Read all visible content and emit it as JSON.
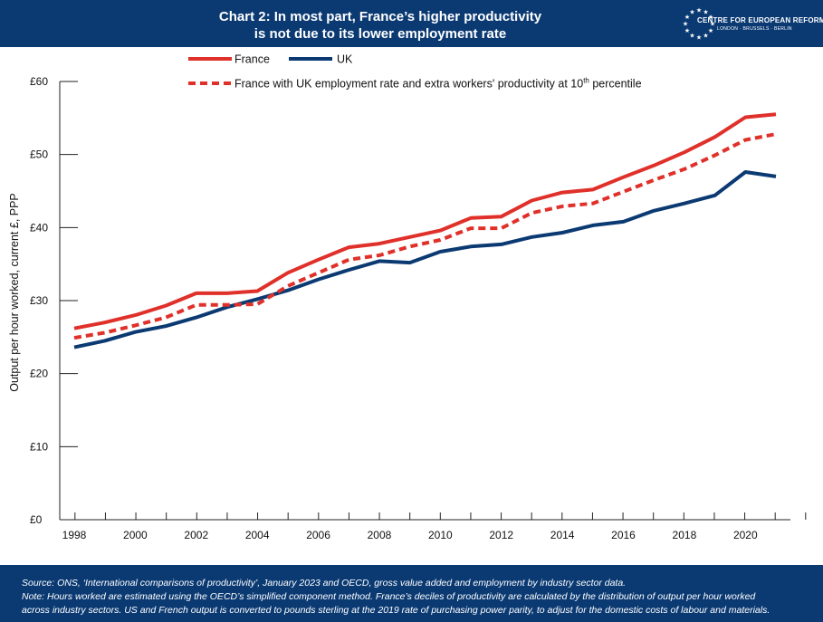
{
  "header": {
    "title_line1": "Chart 2: In most part, France’s higher productivity",
    "title_line2": "is not due to its lower employment rate",
    "logo_name": "CENTRE FOR EUROPEAN REFORM",
    "logo_sub": "LONDON · BRUSSELS · BERLIN"
  },
  "footer": {
    "source": "Source: ONS, ‘International comparisons of productivity’, January 2023 and OECD, gross value added and employment by industry sector data.",
    "note1": "Note: Hours worked are estimated using the OECD’s simplified component method. France’s deciles of productivity are calculated by the distribution of output per hour worked",
    "note2": "across industry sectors. US and French output is converted to pounds sterling at the 2019 rate of purchasing power parity, to adjust for the domestic costs of labour and materials."
  },
  "colors": {
    "header_bg": "#0b3a73",
    "france": "#e0302a",
    "uk": "#0b3a73",
    "axis": "#222222"
  },
  "chart_data": {
    "type": "line",
    "ylabel": "Output per hour worked, current £, PPP",
    "ylim": [
      0,
      60
    ],
    "xlim": [
      1998,
      2021
    ],
    "y_ticks": [
      {
        "value": 0,
        "label": "£0"
      },
      {
        "value": 10,
        "label": "£10"
      },
      {
        "value": 20,
        "label": "£20"
      },
      {
        "value": 30,
        "label": "£30"
      },
      {
        "value": 40,
        "label": "£40"
      },
      {
        "value": 50,
        "label": "£50"
      },
      {
        "value": 60,
        "label": "£60"
      }
    ],
    "x_tick_labels": [
      1998,
      2000,
      2002,
      2004,
      2006,
      2008,
      2010,
      2012,
      2014,
      2016,
      2018,
      2020
    ],
    "x": [
      1998,
      1999,
      2000,
      2001,
      2002,
      2003,
      2004,
      2005,
      2006,
      2007,
      2008,
      2009,
      2010,
      2011,
      2012,
      2013,
      2014,
      2015,
      2016,
      2017,
      2018,
      2019,
      2020,
      2021
    ],
    "grid": false,
    "legend_position": "top",
    "series": [
      {
        "name": "France",
        "style": "solid",
        "color": "#e0302a",
        "values": [
          26.2,
          27.0,
          28.0,
          29.3,
          31.0,
          31.0,
          31.3,
          33.8,
          35.6,
          37.3,
          37.8,
          38.7,
          39.6,
          41.3,
          41.5,
          43.7,
          44.8,
          45.2,
          46.9,
          48.5,
          50.3,
          52.4,
          55.1,
          55.5
        ]
      },
      {
        "name": "UK",
        "style": "solid",
        "color": "#0b3a73",
        "values": [
          23.6,
          24.5,
          25.7,
          26.5,
          27.7,
          29.1,
          30.2,
          31.4,
          32.9,
          34.2,
          35.4,
          35.2,
          36.7,
          37.4,
          37.7,
          38.7,
          39.3,
          40.3,
          40.8,
          42.3,
          43.3,
          44.4,
          47.6,
          47.0
        ]
      },
      {
        "name": "France with UK employment rate and extra workers' productivity at 10",
        "name_sup": "th",
        "name_suffix": " percentile",
        "style": "dashed",
        "color": "#e0302a",
        "values": [
          24.9,
          25.6,
          26.6,
          27.7,
          29.4,
          29.4,
          29.5,
          32.0,
          33.8,
          35.6,
          36.2,
          37.4,
          38.3,
          39.9,
          39.9,
          42.0,
          42.9,
          43.3,
          44.9,
          46.5,
          48.0,
          49.9,
          52.0,
          52.8
        ]
      }
    ]
  }
}
